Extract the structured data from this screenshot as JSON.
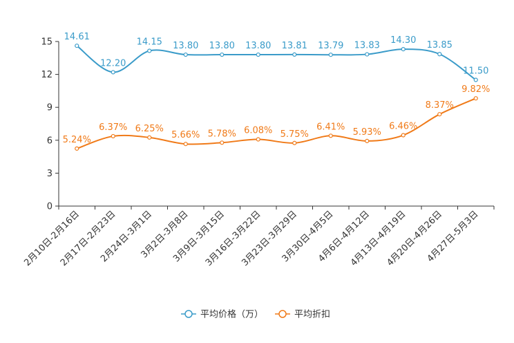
{
  "colors": {
    "price": "#3a9bc9",
    "discount": "#f07a18",
    "axis": "#333333"
  },
  "chart_data": {
    "type": "line",
    "title": "",
    "xlabel": "",
    "ylabel": "",
    "ylim": [
      0,
      15
    ],
    "yticks": [
      "0",
      "3",
      "6",
      "9",
      "12",
      "15"
    ],
    "categories": [
      "2月10日-2月16日",
      "2月17日-2月23日",
      "2月24日-3月1日",
      "3月2日-3月8日",
      "3月9日-3月15日",
      "3月16日-3月22日",
      "3月23日-3月29日",
      "3月30日-4月5日",
      "4月6日-4月12日",
      "4月13日-4月19日",
      "4月20日-4月26日",
      "4月27日-5月3日"
    ],
    "series": [
      {
        "name": "平均价格（万）",
        "values": [
          14.61,
          12.2,
          14.15,
          13.8,
          13.8,
          13.8,
          13.81,
          13.79,
          13.83,
          14.3,
          13.85,
          11.5
        ],
        "labels": [
          "14.61",
          "12.20",
          "14.15",
          "13.80",
          "13.80",
          "13.80",
          "13.81",
          "13.79",
          "13.83",
          "14.30",
          "13.85",
          "11.50"
        ]
      },
      {
        "name": "平均折扣",
        "values": [
          5.24,
          6.37,
          6.25,
          5.66,
          5.78,
          6.08,
          5.75,
          6.41,
          5.93,
          6.46,
          8.37,
          9.82
        ],
        "labels": [
          "5.24%",
          "6.37%",
          "6.25%",
          "5.66%",
          "5.78%",
          "6.08%",
          "5.75%",
          "6.41%",
          "5.93%",
          "6.46%",
          "8.37%",
          "9.82%"
        ]
      }
    ],
    "legend_position": "bottom-center"
  }
}
